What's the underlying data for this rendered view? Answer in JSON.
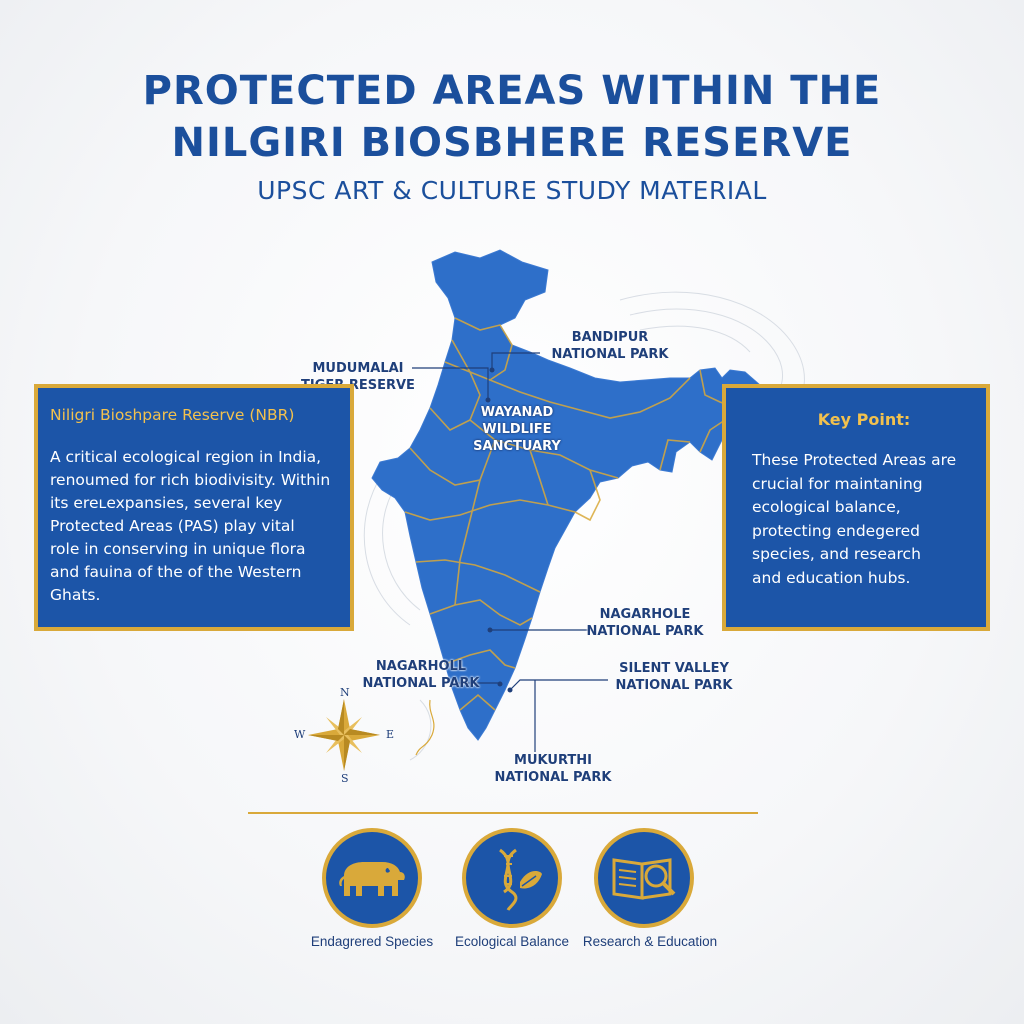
{
  "header": {
    "title_line1": "PROTECTED AREAS WITHIN THE",
    "title_line2": "NILGIRI BIOSBHERE RESERVE",
    "subtitle": "UPSC ART & CULTURE STUDY MATERIAL"
  },
  "map": {
    "labels": {
      "bandipur": [
        "BANDIPUR",
        "NATIONAL PARK"
      ],
      "mudumalai": [
        "MUDUMALAI",
        "TIGER RESERVE"
      ],
      "wayanad": [
        "WAYANAD",
        "WILDLIFE",
        "SANCTUARY"
      ],
      "nagarhole_east": [
        "NAGARHOLE",
        "NATIONAL PARK"
      ],
      "nagarhole_west": [
        "NAGARHOLL",
        "NATIONAL PARK"
      ],
      "silent_valley": [
        "SILENT VALLEY",
        "NATIONAL PARK"
      ],
      "mukurthi": [
        "MUKURTHI",
        "NATIONAL PARK"
      ]
    },
    "compass": {
      "n": "N",
      "s": "S",
      "e": "E",
      "w": "W"
    },
    "colors": {
      "land": "#2e6fc9",
      "borders": "#d9a93a",
      "accent": "#1c55a8"
    }
  },
  "left_box": {
    "heading": "Niligri Bioshpare Reserve (NBR)",
    "lines": [
      "A critical ecological region in India,",
      "renoumed for rich biodivisity. Within",
      "its ereʟexpansies, several key",
      "Protected Areas (PAS) play vital",
      "role in conserving in unique flora",
      "and fauina of the of the Western",
      "Ghats."
    ]
  },
  "right_box": {
    "heading": "Key Point:",
    "lines": [
      "These Protected Areas are",
      "crucial for maintaning",
      "ecological balance,",
      "protecting endegered",
      "species, and research",
      "and education hubs."
    ]
  },
  "features": [
    {
      "icon": "elephant-icon",
      "label": "Endagrered Species"
    },
    {
      "icon": "dna-leaf-icon",
      "label": "Ecological Balance"
    },
    {
      "icon": "book-magnifier-icon",
      "label": "Research & Education"
    }
  ]
}
